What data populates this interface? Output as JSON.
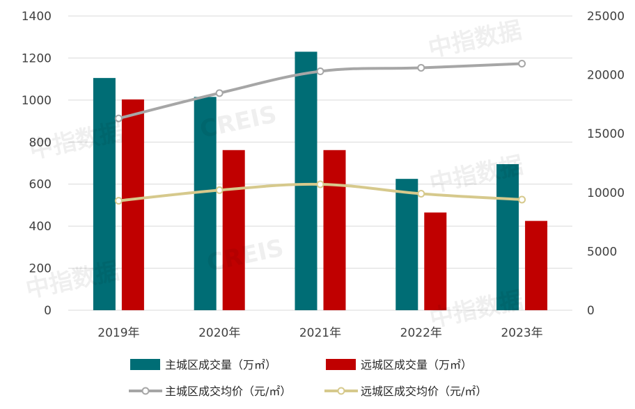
{
  "chart_data": {
    "type": "bar",
    "categories": [
      "2019年",
      "2020年",
      "2021年",
      "2022年",
      "2023年"
    ],
    "y_left": {
      "ylim": [
        0,
        1400
      ],
      "ticks": [
        "0",
        "200",
        "400",
        "600",
        "800",
        "1000",
        "1200",
        "1400"
      ]
    },
    "y_right": {
      "ylim": [
        0,
        25000
      ],
      "ticks": [
        "0",
        "5000",
        "10000",
        "15000",
        "20000",
        "25000"
      ]
    },
    "bar_series": [
      {
        "name": "主城区成交量（万㎡）",
        "values": [
          1105,
          1015,
          1230,
          625,
          695
        ],
        "color": "#006d75"
      },
      {
        "name": "远城区成交量（万㎡）",
        "values": [
          1003,
          762,
          762,
          465,
          425
        ],
        "color": "#c00000"
      }
    ],
    "line_series": [
      {
        "name": "主城区成交均价（元/㎡）",
        "values": [
          16300,
          18450,
          20300,
          20600,
          20950
        ],
        "color": "#a6a6a6"
      },
      {
        "name": "远城区成交均价（元/㎡）",
        "values": [
          9300,
          10200,
          10700,
          9900,
          9400
        ],
        "color": "#d6c98c"
      }
    ],
    "grid": "horizontal",
    "legend_position": "bottom",
    "watermark": [
      "中指数据",
      "CREIS"
    ]
  }
}
